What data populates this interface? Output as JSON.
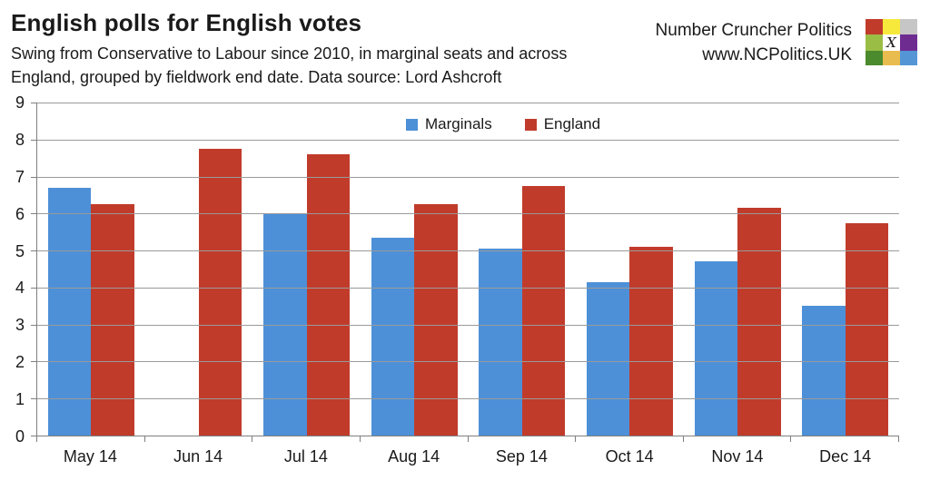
{
  "header": {
    "title": "English polls for English votes",
    "subtitle_line1": "Swing from Conservative to Labour since 2010, in marginal seats and across",
    "subtitle_line2": "England, grouped by fieldwork end date. Data source: Lord Ashcroft",
    "brand_name": "Number Cruncher Politics",
    "brand_url": "www.NCPolitics.UK"
  },
  "logo": {
    "cells": [
      {
        "name": "red-square",
        "color": "#c13b2b"
      },
      {
        "name": "yellow-square",
        "color": "#f6e93b"
      },
      {
        "name": "grey-square",
        "color": "#c6c6c6"
      },
      {
        "name": "yellow-green-square",
        "color": "#9abd45"
      },
      {
        "name": "ballot-x-square",
        "color": "#ffffff",
        "glyph": "X"
      },
      {
        "name": "purple-square",
        "color": "#6e2c91"
      },
      {
        "name": "green-square",
        "color": "#4c8a2e"
      },
      {
        "name": "gold-square",
        "color": "#e9bc4f"
      },
      {
        "name": "blue-square",
        "color": "#5496d5"
      }
    ]
  },
  "chart_data": {
    "type": "bar",
    "title": "",
    "xlabel": "",
    "ylabel": "",
    "categories": [
      "May 14",
      "Jun 14",
      "Jul 14",
      "Aug 14",
      "Sep 14",
      "Oct 14",
      "Nov 14",
      "Dec 14"
    ],
    "series": [
      {
        "name": "Marginals",
        "color": "#4d90d8",
        "values": [
          6.7,
          null,
          6.0,
          5.35,
          5.05,
          4.15,
          4.7,
          3.5
        ]
      },
      {
        "name": "England",
        "color": "#c13b2b",
        "values": [
          6.25,
          7.75,
          7.6,
          6.25,
          6.75,
          5.1,
          6.15,
          5.75
        ]
      }
    ],
    "ylim": [
      0,
      9
    ],
    "ytick_interval": 1,
    "grid": true,
    "legend_position": "top-center"
  }
}
